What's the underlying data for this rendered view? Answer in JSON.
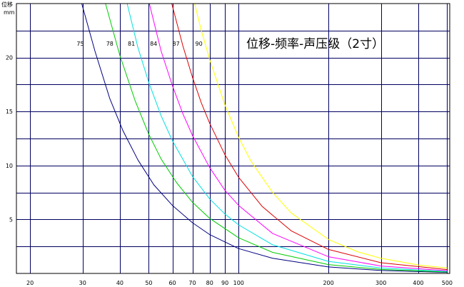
{
  "chart_data": {
    "type": "line",
    "title": "位移-频率-声压级（2寸）",
    "ylabel": "位移",
    "yunit": "mm",
    "xscale": "log",
    "xlim": [
      18,
      510
    ],
    "ylim": [
      0,
      25
    ],
    "xticks": [
      {
        "v": 20,
        "label": "20"
      },
      {
        "v": 30,
        "label": "30"
      },
      {
        "v": 40,
        "label": "40"
      },
      {
        "v": 50,
        "label": "50"
      },
      {
        "v": 60,
        "label": "60"
      },
      {
        "v": 70,
        "label": "70"
      },
      {
        "v": 80,
        "label": "80"
      },
      {
        "v": 90,
        "label": "90"
      },
      {
        "v": 100,
        "label": "100"
      },
      {
        "v": 200,
        "label": "200"
      },
      {
        "v": 300,
        "label": "300"
      },
      {
        "v": 400,
        "label": "400"
      },
      {
        "v": 500,
        "label": "500"
      }
    ],
    "yticks": [
      {
        "v": 5,
        "label": "5"
      },
      {
        "v": 10,
        "label": "10"
      },
      {
        "v": 15,
        "label": "15"
      },
      {
        "v": 20,
        "label": "20"
      }
    ],
    "hgrid": [
      2.5,
      5,
      7.5,
      10,
      12.5,
      15,
      17.5,
      20,
      22.5
    ],
    "grid": true,
    "series": [
      {
        "name": "75",
        "color": "#000080",
        "x": [
          29.8,
          33,
          37,
          41,
          46,
          52,
          60,
          70,
          80,
          100,
          130,
          200,
          300,
          500
        ],
        "y": [
          25,
          20.6,
          16.2,
          13.2,
          10.5,
          8.2,
          6.3,
          4.7,
          3.6,
          2.3,
          1.4,
          0.6,
          0.27,
          0.1
        ]
      },
      {
        "name": "78",
        "color": "#00cc00",
        "x": [
          35.8,
          40,
          45,
          50,
          55,
          62,
          70,
          80,
          100,
          130,
          200,
          300,
          500
        ],
        "y": [
          25,
          20.2,
          16,
          12.9,
          10.6,
          8.4,
          6.6,
          5.1,
          3.3,
          1.95,
          0.82,
          0.37,
          0.13
        ]
      },
      {
        "name": "81",
        "color": "#00e0e0",
        "x": [
          42.3,
          46,
          50,
          55,
          60,
          70,
          80,
          90,
          100,
          130,
          200,
          300,
          500
        ],
        "y": [
          25,
          20.9,
          17.7,
          14.6,
          12.3,
          9.0,
          6.9,
          5.5,
          4.5,
          2.65,
          1.12,
          0.5,
          0.18
        ]
      },
      {
        "name": "84",
        "color": "#ff00ff",
        "x": [
          50.2,
          55,
          60,
          65,
          70,
          80,
          90,
          100,
          130,
          200,
          300,
          500
        ],
        "y": [
          25,
          20.6,
          17.4,
          14.8,
          12.8,
          9.8,
          7.7,
          6.3,
          3.7,
          1.55,
          0.69,
          0.25
        ]
      },
      {
        "name": "87",
        "color": "#dd0000",
        "x": [
          59.7,
          65,
          70,
          75,
          80,
          90,
          100,
          120,
          150,
          200,
          300,
          500
        ],
        "y": [
          25,
          21.1,
          18.2,
          15.8,
          13.9,
          11.0,
          8.9,
          6.2,
          3.95,
          2.22,
          0.99,
          0.36
        ]
      },
      {
        "name": "90",
        "color": "#ffff00",
        "x": [
          71.2,
          75,
          80,
          90,
          100,
          110,
          130,
          150,
          200,
          250,
          300,
          400,
          500
        ],
        "y": [
          25,
          22.5,
          19.8,
          15.6,
          12.6,
          10.4,
          7.5,
          5.6,
          3.15,
          2.02,
          1.4,
          0.79,
          0.5
        ]
      }
    ]
  }
}
